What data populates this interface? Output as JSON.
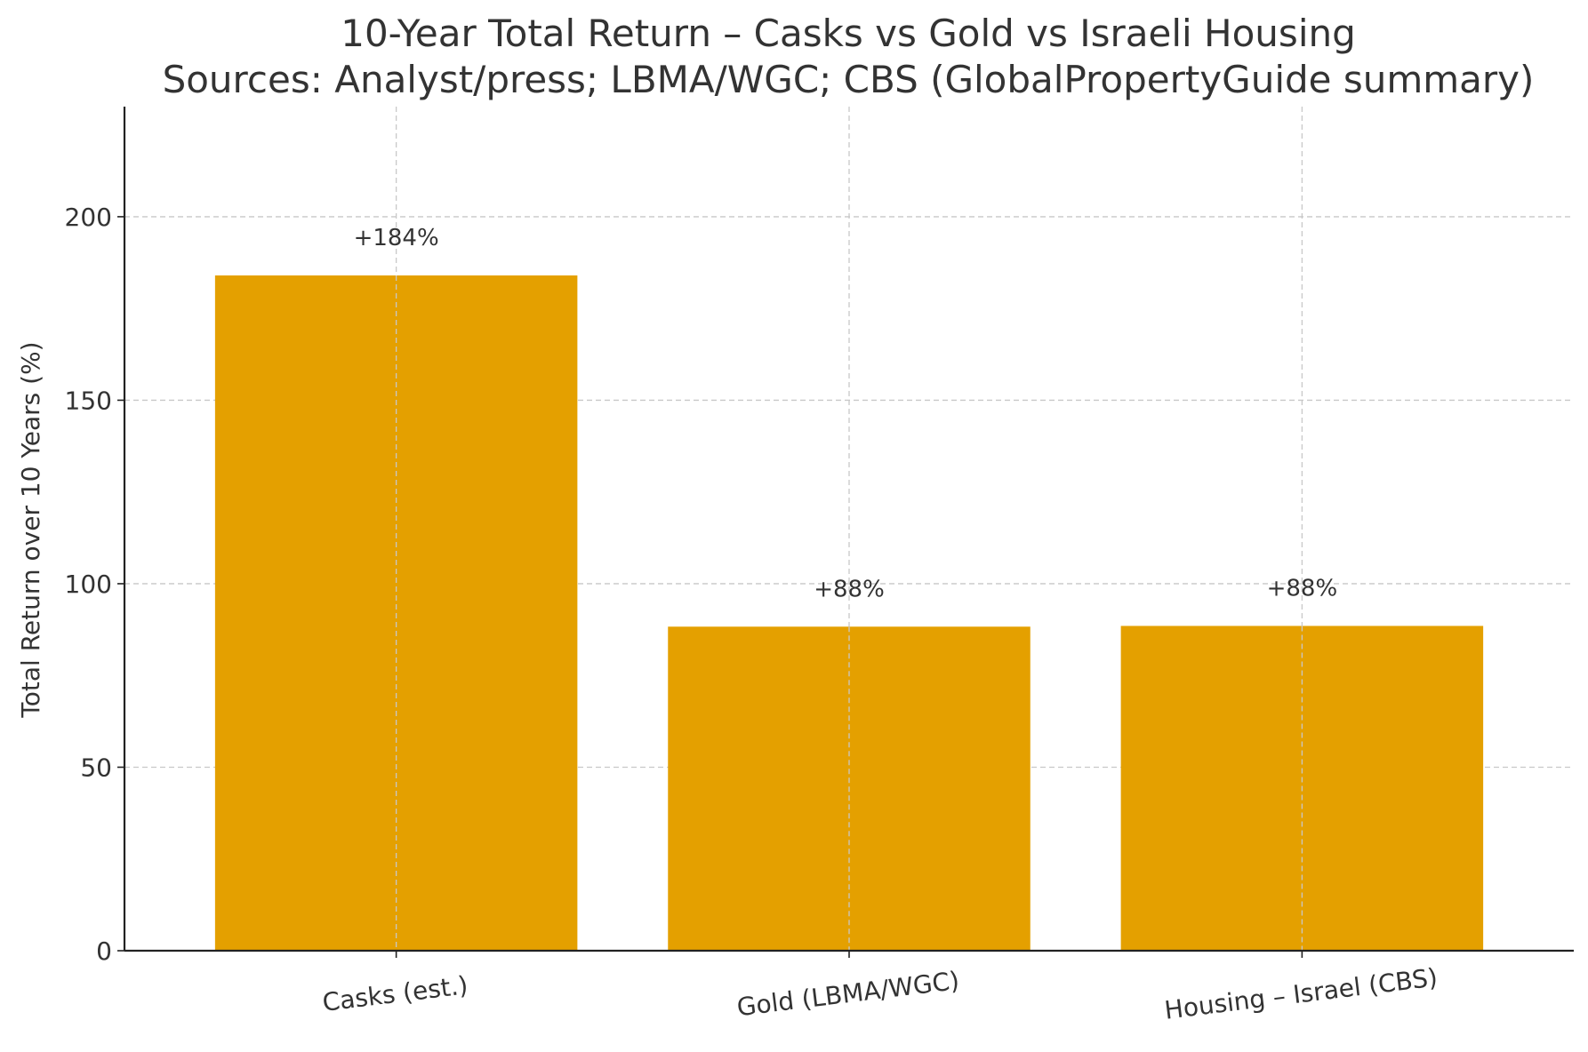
{
  "chart_data": {
    "type": "bar",
    "title": "10-Year Total Return – Casks vs Gold vs Israeli Housing",
    "subtitle": "Sources: Analyst/press; LBMA/WGC; CBS (GlobalPropertyGuide summary)",
    "xlabel": "",
    "ylabel": "Total Return over 10 Years (%)",
    "categories": [
      "Casks (est.)",
      "Gold (LBMA/WGC)",
      "Housing – Israel (CBS)"
    ],
    "values": [
      184,
      88.3,
      88.5
    ],
    "data_labels": [
      "+184%",
      "+88%",
      "+88%"
    ],
    "ylim": [
      0,
      230
    ],
    "yticks": [
      0,
      50,
      100,
      150,
      200
    ],
    "grid": true,
    "bar_color": "#E4A000"
  }
}
